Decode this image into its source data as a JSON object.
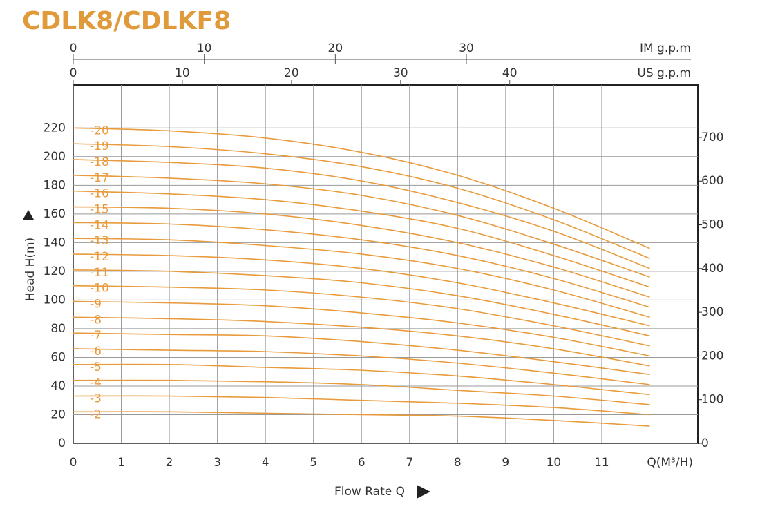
{
  "chart_data": {
    "type": "line",
    "title": "CDLK8/CDLKF8",
    "y_label": "Head H(m)",
    "x_label": "Flow Rate Q",
    "x_unit_label": "Q(M³/H)",
    "color": "#e89b3c",
    "grid": true,
    "x": [
      0,
      2,
      4,
      6,
      8,
      10,
      12
    ],
    "xlim": [
      0,
      13
    ],
    "xticks": [
      0,
      1,
      2,
      3,
      4,
      5,
      6,
      7,
      8,
      9,
      10,
      11
    ],
    "ylim": [
      0,
      250
    ],
    "yticks": [
      0,
      20,
      40,
      60,
      80,
      100,
      120,
      140,
      160,
      180,
      200,
      220
    ],
    "y2lim": [
      0,
      820
    ],
    "y2ticks": [
      0,
      100,
      200,
      300,
      400,
      500,
      600,
      700
    ],
    "top_axes": [
      {
        "label": "IM g.p.m",
        "lim": [
          0,
          47.66
        ],
        "ticks": [
          0,
          10,
          20,
          30
        ]
      },
      {
        "label": "US g.p.m",
        "lim": [
          0,
          57.24
        ],
        "ticks": [
          0,
          10,
          20,
          30,
          40
        ]
      }
    ],
    "series": [
      {
        "name": "-20",
        "values": [
          220,
          218,
          213,
          203,
          187,
          164,
          136
        ]
      },
      {
        "name": "-19",
        "values": [
          209,
          207,
          202,
          193,
          178,
          156,
          129
        ]
      },
      {
        "name": "-18",
        "values": [
          198,
          196,
          192,
          183,
          168,
          148,
          122
        ]
      },
      {
        "name": "-17",
        "values": [
          187,
          185,
          181,
          173,
          159,
          139,
          116
        ]
      },
      {
        "name": "-16",
        "values": [
          176,
          174,
          170,
          162,
          150,
          131,
          109
        ]
      },
      {
        "name": "-15",
        "values": [
          165,
          164,
          160,
          152,
          140,
          123,
          102
        ]
      },
      {
        "name": "-14",
        "values": [
          154,
          153,
          149,
          142,
          131,
          115,
          95
        ]
      },
      {
        "name": "-13",
        "values": [
          143,
          142,
          138,
          132,
          122,
          107,
          88
        ]
      },
      {
        "name": "-12",
        "values": [
          132,
          131,
          128,
          122,
          112,
          98,
          82
        ]
      },
      {
        "name": "-11",
        "values": [
          121,
          120,
          117,
          112,
          103,
          90,
          75
        ]
      },
      {
        "name": "-10",
        "values": [
          110,
          109,
          107,
          102,
          94,
          82,
          68
        ]
      },
      {
        "name": "-9",
        "values": [
          99,
          98,
          96,
          91,
          84,
          74,
          61
        ]
      },
      {
        "name": "-8",
        "values": [
          88,
          87,
          85,
          81,
          75,
          66,
          54
        ]
      },
      {
        "name": "-7",
        "values": [
          77,
          76,
          75,
          71,
          65,
          57,
          48
        ]
      },
      {
        "name": "-6",
        "values": [
          66,
          65,
          64,
          61,
          56,
          49,
          41
        ]
      },
      {
        "name": "-5",
        "values": [
          55,
          55,
          53,
          51,
          47,
          41,
          34
        ]
      },
      {
        "name": "-4",
        "values": [
          44,
          44,
          43,
          41,
          37,
          33,
          27
        ]
      },
      {
        "name": "-3",
        "values": [
          33,
          33,
          32,
          30,
          28,
          25,
          20
        ]
      },
      {
        "name": "-2",
        "values": [
          22,
          22,
          21,
          20,
          19,
          16,
          12
        ]
      }
    ]
  }
}
